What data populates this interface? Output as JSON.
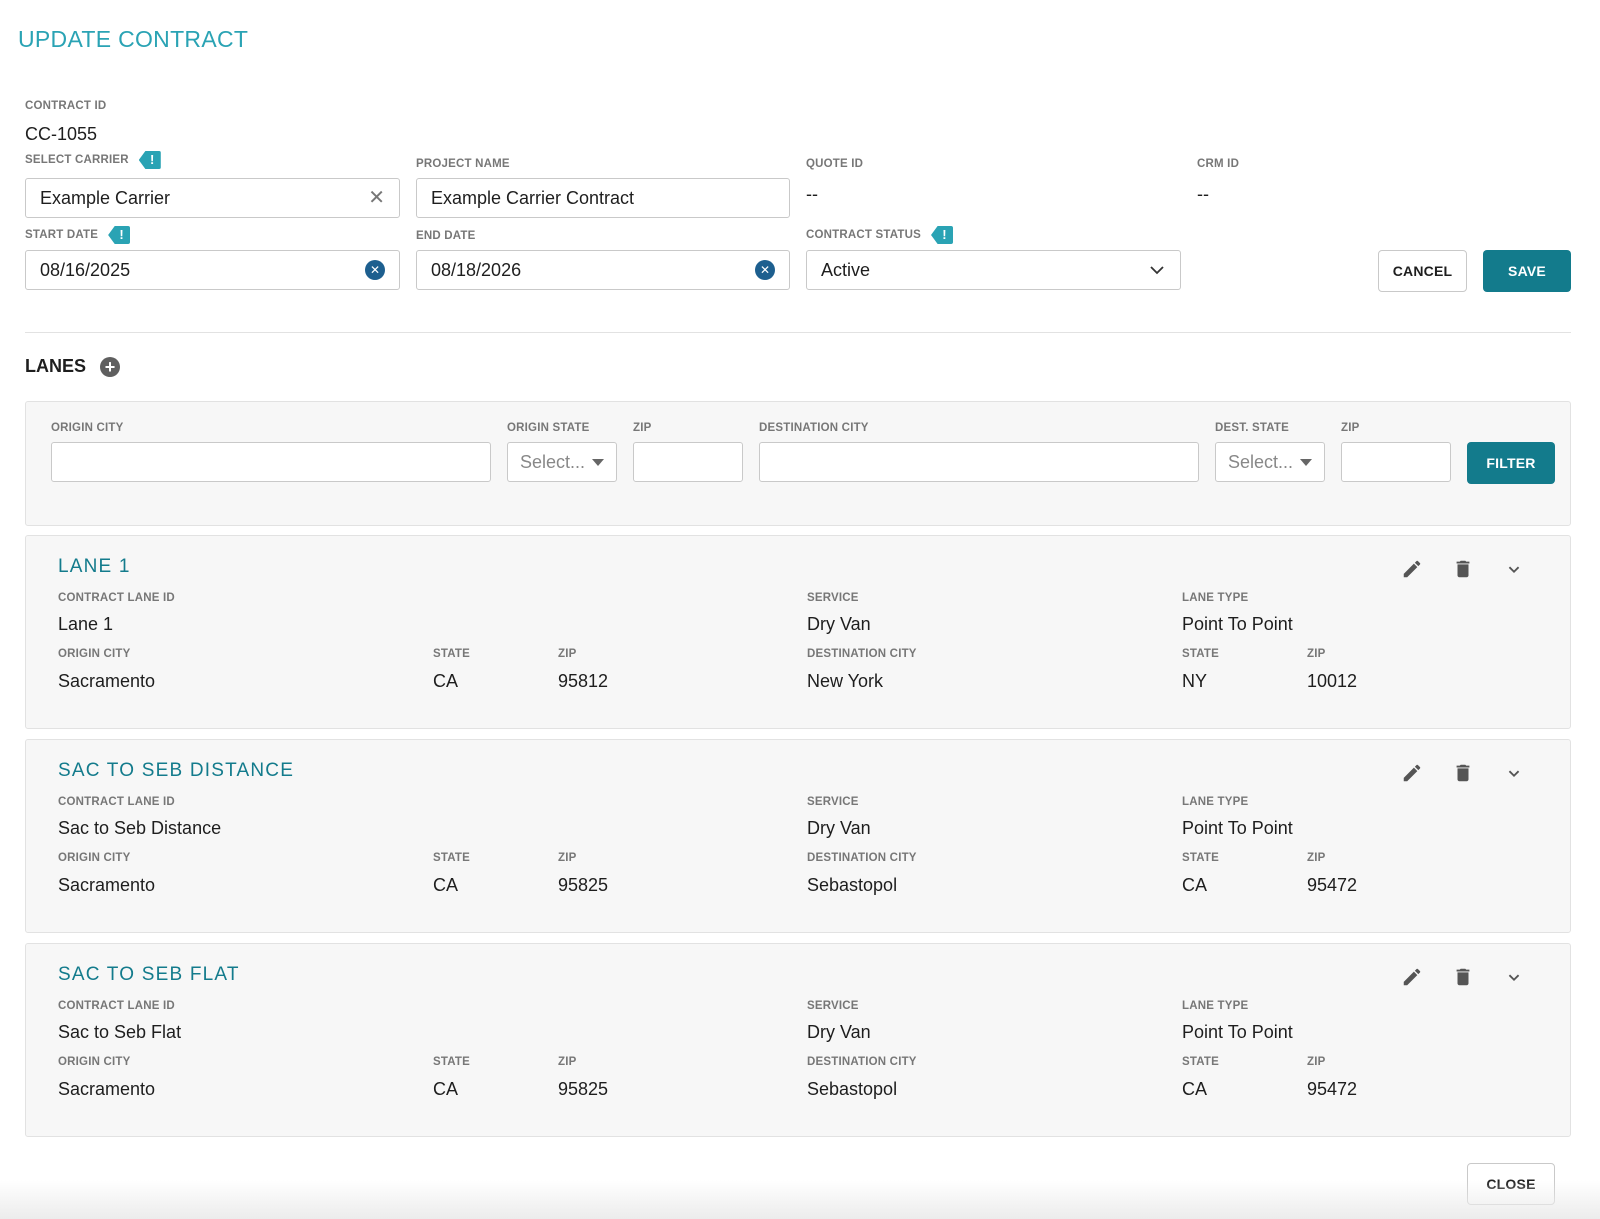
{
  "page_title": "UPDATE CONTRACT",
  "contract": {
    "id_label": "CONTRACT ID",
    "id_value": "CC-1055",
    "carrier_label": "SELECT CARRIER",
    "carrier_value": "Example Carrier",
    "project_label": "PROJECT NAME",
    "project_value": "Example Carrier Contract",
    "quote_label": "QUOTE ID",
    "quote_value": "--",
    "crm_label": "CRM ID",
    "crm_value": "--",
    "start_label": "START DATE",
    "start_value": "08/16/2025",
    "end_label": "END DATE",
    "end_value": "08/18/2026",
    "status_label": "CONTRACT STATUS",
    "status_value": "Active",
    "warn_glyph": "!"
  },
  "actions": {
    "cancel": "CANCEL",
    "save": "SAVE",
    "close": "CLOSE"
  },
  "lanes_section": {
    "title": "LANES",
    "add_glyph": "+"
  },
  "filter": {
    "origin_city": "ORIGIN CITY",
    "origin_state": "ORIGIN STATE",
    "origin_zip": "ZIP",
    "dest_city": "DESTINATION CITY",
    "dest_state": "DEST. STATE",
    "dest_zip": "ZIP",
    "select_placeholder": "Select...",
    "filter_button": "FILTER"
  },
  "lane_labels": {
    "contract_lane_id": "CONTRACT LANE ID",
    "service": "SERVICE",
    "lane_type": "LANE TYPE",
    "origin_city": "ORIGIN CITY",
    "state": "STATE",
    "zip": "ZIP",
    "destination_city": "DESTINATION CITY"
  },
  "lanes": [
    {
      "title": "LANE 1",
      "contract_lane_id": "Lane 1",
      "service": "Dry Van",
      "lane_type": "Point To Point",
      "origin_city": "Sacramento",
      "origin_state": "CA",
      "origin_zip": "95812",
      "destination_city": "New York",
      "dest_state": "NY",
      "dest_zip": "10012"
    },
    {
      "title": "SAC TO SEB DISTANCE",
      "contract_lane_id": "Sac to Seb Distance",
      "service": "Dry Van",
      "lane_type": "Point To Point",
      "origin_city": "Sacramento",
      "origin_state": "CA",
      "origin_zip": "95825",
      "destination_city": "Sebastopol",
      "dest_state": "CA",
      "dest_zip": "95472"
    },
    {
      "title": "SAC TO SEB FLAT",
      "contract_lane_id": "Sac to Seb Flat",
      "service": "Dry Van",
      "lane_type": "Point To Point",
      "origin_city": "Sacramento",
      "origin_state": "CA",
      "origin_zip": "95825",
      "destination_city": "Sebastopol",
      "dest_state": "CA",
      "dest_zip": "95472"
    }
  ],
  "icons": {
    "edit": "pencil-icon",
    "delete": "trash-icon",
    "expand": "chevron-down-icon",
    "clear": "close-icon",
    "clear_date": "clear-circle-icon",
    "add": "plus-circle-icon",
    "warning": "exclamation-tag-icon"
  },
  "colors": {
    "accent": "#2aa3b4",
    "primary": "#137b8c",
    "date_clear": "#1d5f8f"
  }
}
